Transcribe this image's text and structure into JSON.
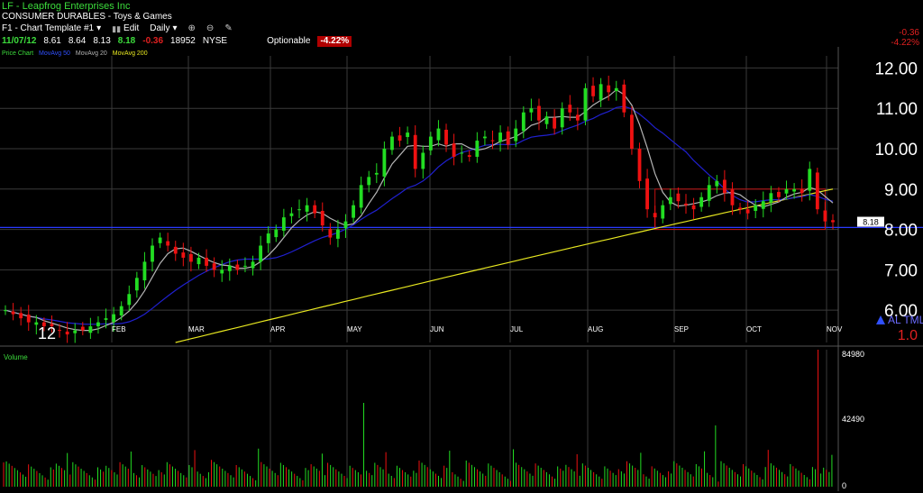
{
  "header": {
    "title": "LF - Leapfrog Enterprises Inc",
    "sector": "CONSUMER DURABLES - Toys & Games",
    "template": "F1 - Chart Template #1",
    "edit": "Edit",
    "period": "Daily",
    "quote": {
      "date": "11/07/12",
      "open": "8.61",
      "high": "8.64",
      "low": "8.13",
      "close": "8.18",
      "change": "-0.36",
      "volume": "18952",
      "exchange": "NYSE",
      "optionable": "Optionable",
      "pct": "-4.22%"
    },
    "indicators": [
      "Price Chart",
      "MovAvg 50",
      "MovAvg 20",
      "MovAvg 200"
    ],
    "right_change": "-0.36",
    "right_pct": "-4.22%",
    "year_label": "12",
    "badge_letters": "AL TML",
    "badge_value": "1.0",
    "price_tag": "8.18"
  },
  "colors": {
    "up": "#22dd22",
    "down": "#ee1111",
    "ma20": "#b4b4b4",
    "ma50": "#2020d0",
    "ma200": "#e8e820",
    "grid": "#3a3a3a",
    "hline": "#2a3aff"
  },
  "chart_data": [
    {
      "type": "candlestick",
      "title": "LF - Leapfrog Enterprises Inc",
      "ylim": [
        5.2,
        12.3
      ],
      "yticks": [
        "12.00",
        "11.00",
        "10.00",
        "9.00",
        "8.00",
        "7.00",
        "6.00"
      ],
      "months": [
        "FEB",
        "MAR",
        "APR",
        "MAY",
        "JUN",
        "JUL",
        "AUG",
        "SEP",
        "OCT",
        "NOV"
      ],
      "horizontal_line": 8.05,
      "last_price": 8.18,
      "legend": [
        "MovAvg 50",
        "MovAvg 20",
        "MovAvg 200"
      ],
      "closes": [
        6.0,
        5.9,
        5.8,
        5.7,
        5.7,
        5.6,
        5.6,
        5.5,
        5.4,
        5.5,
        5.5,
        5.6,
        5.7,
        5.8,
        5.9,
        6.1,
        6.4,
        6.8,
        7.2,
        7.6,
        7.8,
        7.6,
        7.4,
        7.3,
        7.2,
        7.3,
        7.1,
        7.0,
        7.0,
        7.1,
        7.0,
        7.1,
        7.2,
        7.6,
        7.9,
        8.0,
        8.3,
        8.4,
        8.5,
        8.6,
        8.4,
        8.1,
        7.8,
        8.0,
        8.2,
        8.6,
        9.1,
        9.3,
        9.4,
        10.0,
        10.3,
        10.2,
        10.4,
        9.5,
        9.9,
        10.3,
        10.5,
        10.1,
        9.8,
        9.9,
        9.8,
        10.2,
        10.3,
        10.2,
        10.4,
        10.1,
        10.5,
        10.9,
        11.0,
        10.7,
        10.8,
        10.5,
        11.0,
        10.9,
        10.7,
        11.5,
        11.3,
        11.6,
        11.4,
        11.5,
        10.9,
        10.0,
        9.2,
        8.5,
        8.3,
        8.6,
        8.8,
        8.7,
        8.6,
        8.5,
        8.8,
        9.1,
        9.2,
        8.9,
        8.6,
        8.5,
        8.4,
        8.6,
        8.7,
        8.9,
        8.8,
        9.0,
        9.0,
        8.9,
        9.5,
        8.5,
        8.2,
        8.18
      ],
      "volume": {
        "ylim": [
          0,
          84980
        ],
        "yticks": [
          "84980",
          "42490",
          "0"
        ]
      }
    }
  ]
}
